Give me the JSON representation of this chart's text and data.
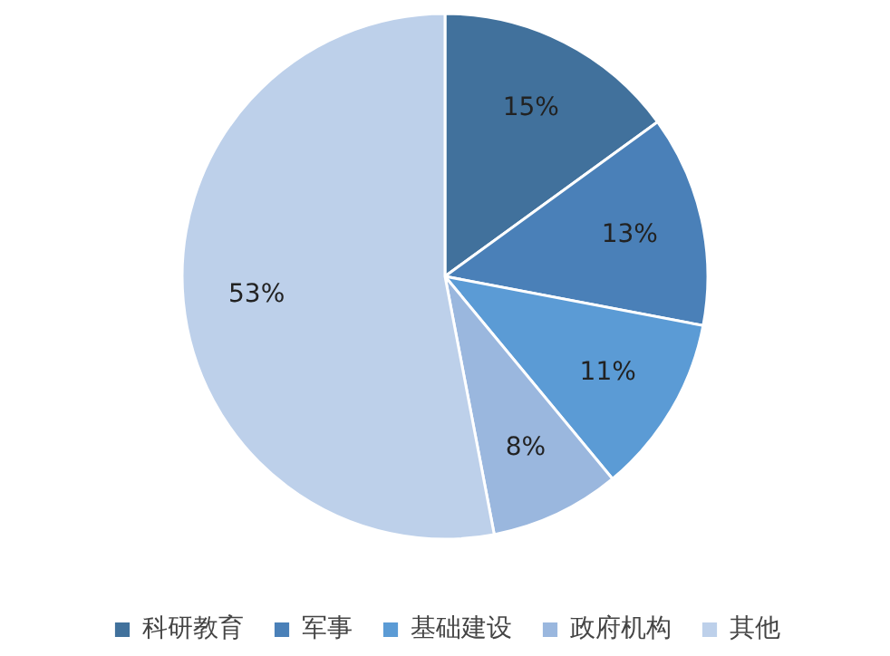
{
  "chart_data": {
    "type": "pie",
    "categories": [
      "科研教育",
      "军事",
      "基础建设",
      "政府机构",
      "其他"
    ],
    "values": [
      15,
      13,
      11,
      8,
      53
    ],
    "colors": [
      "#41719c",
      "#4a80b8",
      "#5b9bd5",
      "#9ab7de",
      "#bdd0ea"
    ],
    "value_labels": [
      "15%",
      "13%",
      "11%",
      "8%",
      "53%"
    ],
    "legend": "bottom"
  }
}
